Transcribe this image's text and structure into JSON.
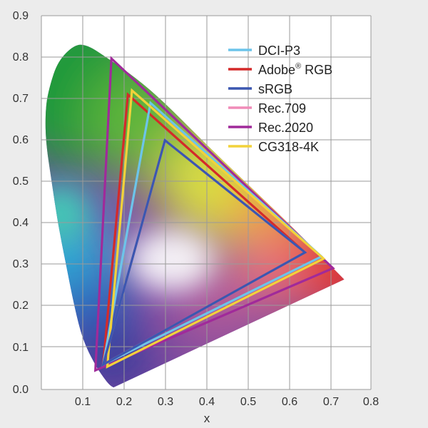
{
  "chart_data": {
    "type": "scatter",
    "title": "",
    "xlabel": "x",
    "ylabel": "",
    "xlim": [
      0.0,
      0.8
    ],
    "ylim": [
      0.0,
      0.9
    ],
    "xticks": [
      "0.1",
      "0.2",
      "0.3",
      "0.4",
      "0.5",
      "0.6",
      "0.7",
      "0.8"
    ],
    "yticks": [
      "0.0",
      "0.1",
      "0.2",
      "0.3",
      "0.4",
      "0.5",
      "0.6",
      "0.7",
      "0.8",
      "0.9"
    ],
    "grid": true,
    "legend_position": "top-right",
    "series": [
      {
        "name": "DCI-P3",
        "legend": "DCI-P3",
        "color": "#6cc4ea",
        "points": [
          [
            0.68,
            0.32
          ],
          [
            0.265,
            0.69
          ],
          [
            0.15,
            0.06
          ]
        ]
      },
      {
        "name": "Adobe RGB",
        "legend": "Adobe",
        "legend_sup": "®",
        "legend_suffix": " RGB",
        "color": "#d42a2a",
        "points": [
          [
            0.64,
            0.33
          ],
          [
            0.21,
            0.71
          ],
          [
            0.15,
            0.06
          ]
        ]
      },
      {
        "name": "sRGB",
        "legend": "sRGB",
        "color": "#3b57b0",
        "points": [
          [
            0.64,
            0.33
          ],
          [
            0.3,
            0.6
          ],
          [
            0.15,
            0.06
          ]
        ]
      },
      {
        "name": "Rec.709",
        "legend": "Rec.709",
        "color": "#f08cb8",
        "points": [
          [
            0.64,
            0.33
          ],
          [
            0.3,
            0.6
          ],
          [
            0.15,
            0.06
          ]
        ]
      },
      {
        "name": "Rec.2020",
        "legend": "Rec.2020",
        "color": "#a02a9a",
        "points": [
          [
            0.708,
            0.292
          ],
          [
            0.17,
            0.797
          ],
          [
            0.131,
            0.046
          ]
        ]
      },
      {
        "name": "CG318-4K",
        "legend": "CG318-4K",
        "color": "#f2d23a",
        "points": [
          [
            0.685,
            0.315
          ],
          [
            0.22,
            0.72
          ],
          [
            0.16,
            0.055
          ]
        ]
      }
    ],
    "spectral_locus_approx": [
      [
        0.175,
        0.005
      ],
      [
        0.166,
        0.01
      ],
      [
        0.15,
        0.03
      ],
      [
        0.13,
        0.06
      ],
      [
        0.1,
        0.12
      ],
      [
        0.08,
        0.2
      ],
      [
        0.06,
        0.3
      ],
      [
        0.04,
        0.4
      ],
      [
        0.025,
        0.5
      ],
      [
        0.01,
        0.6
      ],
      [
        0.01,
        0.68
      ],
      [
        0.02,
        0.73
      ],
      [
        0.04,
        0.79
      ],
      [
        0.08,
        0.83
      ],
      [
        0.11,
        0.83
      ],
      [
        0.15,
        0.805
      ],
      [
        0.23,
        0.75
      ],
      [
        0.3,
        0.69
      ],
      [
        0.4,
        0.59
      ],
      [
        0.5,
        0.495
      ],
      [
        0.6,
        0.4
      ],
      [
        0.735,
        0.265
      ]
    ]
  }
}
